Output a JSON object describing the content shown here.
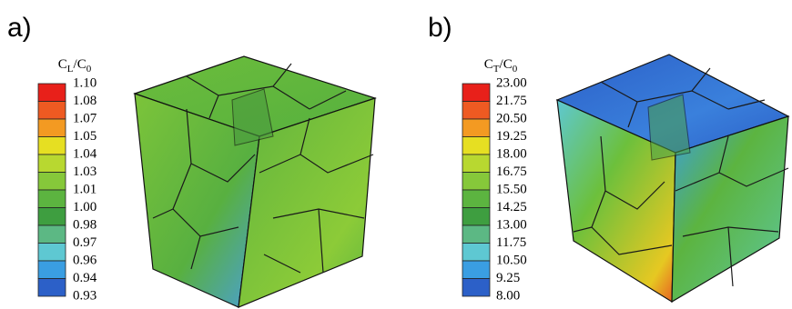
{
  "panels": [
    {
      "label": "a)",
      "colorbar": {
        "title": {
          "base1": "C",
          "sub1": "L",
          "base2": "/C",
          "sub2": "0"
        },
        "labels": [
          "1.10",
          "1.08",
          "1.07",
          "1.05",
          "1.04",
          "1.03",
          "1.01",
          "1.00",
          "0.98",
          "0.97",
          "0.96",
          "0.94",
          "0.93"
        ],
        "colors": [
          "#e8201a",
          "#ee5a22",
          "#f39a22",
          "#e6df22",
          "#b8d830",
          "#86c83a",
          "#5cb440",
          "#3e9e40",
          "#5cb884",
          "#5ec8d2",
          "#3a9ee2",
          "#2c60c8"
        ]
      }
    },
    {
      "label": "b)",
      "colorbar": {
        "title": {
          "base1": "C",
          "sub1": "T",
          "base2": "/C",
          "sub2": "0"
        },
        "labels": [
          "23.00",
          "21.75",
          "20.50",
          "19.25",
          "18.00",
          "16.75",
          "15.50",
          "14.25",
          "13.00",
          "11.75",
          "10.50",
          "9.25",
          "8.00"
        ],
        "colors": [
          "#e8201a",
          "#ee5a22",
          "#f39a22",
          "#e6df22",
          "#b8d830",
          "#86c83a",
          "#5cb440",
          "#3e9e40",
          "#5cb884",
          "#5ec8d2",
          "#3a9ee2",
          "#2c60c8"
        ]
      }
    }
  ]
}
